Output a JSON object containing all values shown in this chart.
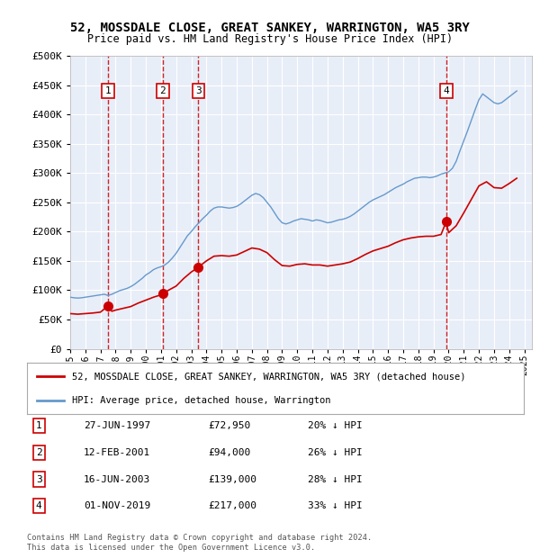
{
  "title": "52, MOSSDALE CLOSE, GREAT SANKEY, WARRINGTON, WA5 3RY",
  "subtitle": "Price paid vs. HM Land Registry's House Price Index (HPI)",
  "bg_color": "#e8eef8",
  "ylim": [
    0,
    500000
  ],
  "yticks": [
    0,
    50000,
    100000,
    150000,
    200000,
    250000,
    300000,
    350000,
    400000,
    450000,
    500000
  ],
  "xlim_start": 1995.0,
  "xlim_end": 2025.5,
  "transactions": [
    {
      "label": "1",
      "date": "27-JUN-1997",
      "year": 1997.49,
      "price": 72950
    },
    {
      "label": "2",
      "date": "12-FEB-2001",
      "year": 2001.12,
      "price": 94000
    },
    {
      "label": "3",
      "date": "16-JUN-2003",
      "year": 2003.46,
      "price": 139000
    },
    {
      "label": "4",
      "date": "01-NOV-2019",
      "year": 2019.84,
      "price": 217000
    }
  ],
  "legend_line1": "52, MOSSDALE CLOSE, GREAT SANKEY, WARRINGTON, WA5 3RY (detached house)",
  "legend_line2": "HPI: Average price, detached house, Warrington",
  "table_rows": [
    [
      "1",
      "27-JUN-1997",
      "£72,950",
      "20% ↓ HPI"
    ],
    [
      "2",
      "12-FEB-2001",
      "£94,000",
      "26% ↓ HPI"
    ],
    [
      "3",
      "16-JUN-2003",
      "£139,000",
      "28% ↓ HPI"
    ],
    [
      "4",
      "01-NOV-2019",
      "£217,000",
      "33% ↓ HPI"
    ]
  ],
  "footer": "Contains HM Land Registry data © Crown copyright and database right 2024.\nThis data is licensed under the Open Government Licence v3.0.",
  "red_line_color": "#cc0000",
  "blue_line_color": "#6699cc",
  "hpi_warrington_years": [
    1995.0,
    1995.25,
    1995.5,
    1995.75,
    1996.0,
    1996.25,
    1996.5,
    1996.75,
    1997.0,
    1997.25,
    1997.5,
    1997.75,
    1998.0,
    1998.25,
    1998.5,
    1998.75,
    1999.0,
    1999.25,
    1999.5,
    1999.75,
    2000.0,
    2000.25,
    2000.5,
    2000.75,
    2001.0,
    2001.25,
    2001.5,
    2001.75,
    2002.0,
    2002.25,
    2002.5,
    2002.75,
    2003.0,
    2003.25,
    2003.5,
    2003.75,
    2004.0,
    2004.25,
    2004.5,
    2004.75,
    2005.0,
    2005.25,
    2005.5,
    2005.75,
    2006.0,
    2006.25,
    2006.5,
    2006.75,
    2007.0,
    2007.25,
    2007.5,
    2007.75,
    2008.0,
    2008.25,
    2008.5,
    2008.75,
    2009.0,
    2009.25,
    2009.5,
    2009.75,
    2010.0,
    2010.25,
    2010.5,
    2010.75,
    2011.0,
    2011.25,
    2011.5,
    2011.75,
    2012.0,
    2012.25,
    2012.5,
    2012.75,
    2013.0,
    2013.25,
    2013.5,
    2013.75,
    2014.0,
    2014.25,
    2014.5,
    2014.75,
    2015.0,
    2015.25,
    2015.5,
    2015.75,
    2016.0,
    2016.25,
    2016.5,
    2016.75,
    2017.0,
    2017.25,
    2017.5,
    2017.75,
    2018.0,
    2018.25,
    2018.5,
    2018.75,
    2019.0,
    2019.25,
    2019.5,
    2019.75,
    2020.0,
    2020.25,
    2020.5,
    2020.75,
    2021.0,
    2021.25,
    2021.5,
    2021.75,
    2022.0,
    2022.25,
    2022.5,
    2022.75,
    2023.0,
    2023.25,
    2023.5,
    2023.75,
    2024.0,
    2024.25,
    2024.5
  ],
  "hpi_warrington_prices": [
    88000,
    87000,
    86500,
    87000,
    88000,
    89000,
    90000,
    91000,
    92000,
    93000,
    91000,
    93000,
    96000,
    99000,
    101000,
    103000,
    106000,
    110000,
    115000,
    120000,
    126000,
    130000,
    135000,
    138000,
    140000,
    143000,
    148000,
    155000,
    163000,
    173000,
    183000,
    193000,
    200000,
    208000,
    215000,
    222000,
    228000,
    235000,
    240000,
    242000,
    242000,
    241000,
    240000,
    241000,
    243000,
    247000,
    252000,
    257000,
    262000,
    265000,
    263000,
    258000,
    250000,
    242000,
    232000,
    222000,
    215000,
    213000,
    215000,
    218000,
    220000,
    222000,
    221000,
    220000,
    218000,
    220000,
    219000,
    217000,
    215000,
    216000,
    218000,
    220000,
    221000,
    223000,
    226000,
    230000,
    235000,
    240000,
    245000,
    250000,
    254000,
    257000,
    260000,
    263000,
    267000,
    271000,
    275000,
    278000,
    281000,
    285000,
    288000,
    291000,
    292000,
    293000,
    293000,
    292000,
    293000,
    295000,
    298000,
    300000,
    302000,
    308000,
    320000,
    338000,
    355000,
    372000,
    390000,
    408000,
    425000,
    435000,
    430000,
    425000,
    420000,
    418000,
    420000,
    425000,
    430000,
    435000,
    440000
  ],
  "property_years": [
    1995.0,
    1995.5,
    1996.0,
    1996.5,
    1997.0,
    1997.49,
    1997.75,
    1998.0,
    1998.5,
    1999.0,
    1999.5,
    2000.0,
    2000.5,
    2001.0,
    2001.12,
    2001.5,
    2002.0,
    2002.5,
    2003.0,
    2003.46,
    2003.75,
    2004.0,
    2004.5,
    2005.0,
    2005.5,
    2006.0,
    2006.5,
    2007.0,
    2007.5,
    2008.0,
    2008.5,
    2009.0,
    2009.5,
    2010.0,
    2010.5,
    2011.0,
    2011.5,
    2012.0,
    2012.5,
    2013.0,
    2013.5,
    2014.0,
    2014.5,
    2015.0,
    2015.5,
    2016.0,
    2016.5,
    2017.0,
    2017.5,
    2018.0,
    2018.5,
    2019.0,
    2019.5,
    2019.84,
    2020.0,
    2020.5,
    2021.0,
    2021.5,
    2022.0,
    2022.5,
    2023.0,
    2023.5,
    2024.0,
    2024.5
  ],
  "property_prices": [
    60000,
    59000,
    60000,
    61000,
    62500,
    72950,
    64000,
    66000,
    69000,
    72000,
    78000,
    83000,
    88000,
    92000,
    94000,
    100000,
    107000,
    120000,
    131000,
    139000,
    145000,
    150000,
    158000,
    159000,
    158000,
    160000,
    166000,
    172000,
    170000,
    164000,
    152000,
    142000,
    141000,
    144000,
    145000,
    143000,
    143000,
    141000,
    143000,
    145000,
    148000,
    154000,
    161000,
    167000,
    171000,
    175000,
    181000,
    186000,
    189000,
    191000,
    192000,
    192000,
    195000,
    217000,
    198000,
    210000,
    232000,
    255000,
    278000,
    285000,
    275000,
    274000,
    282000,
    291000
  ]
}
